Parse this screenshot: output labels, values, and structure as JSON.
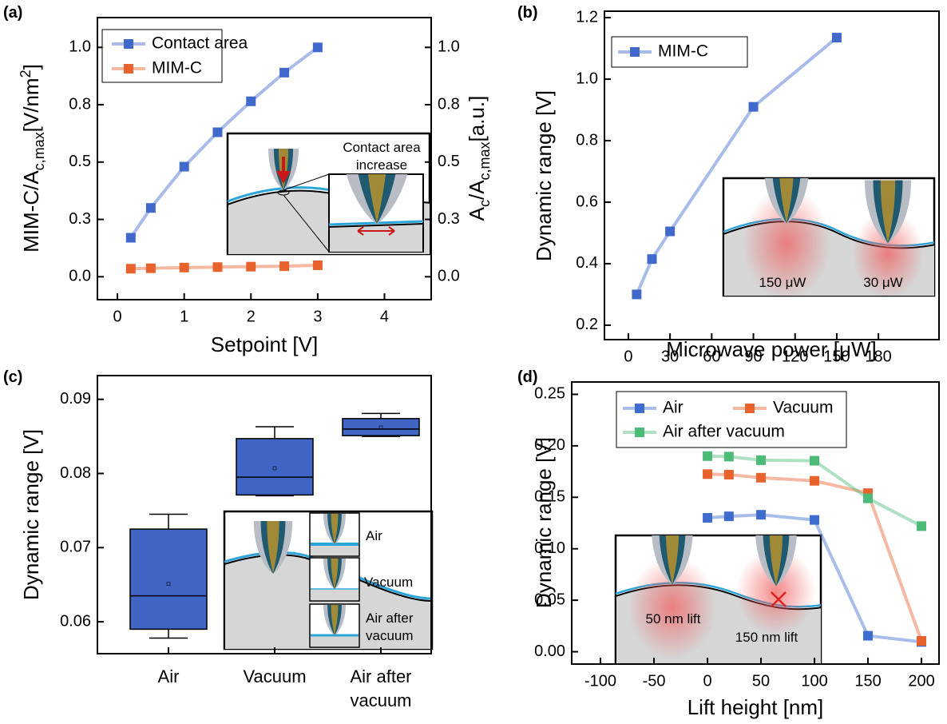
{
  "chart_data": [
    {
      "label": "(a)",
      "type": "line",
      "x_label": "Setpoint [V]",
      "y_label": [
        "MIM-C/A",
        "c,max",
        "[V/nm",
        "2",
        "]"
      ],
      "y2_label": [
        "A",
        "c",
        "/A",
        "c,max",
        "[a.u.]"
      ],
      "x": [
        0.2,
        0.5,
        1,
        1.5,
        2,
        2.5,
        3
      ],
      "series": [
        {
          "name": "Contact area",
          "color": "#4169cc",
          "axis": "y2",
          "values": [
            0.17,
            0.3,
            0.48,
            0.63,
            0.765,
            0.89,
            1.0
          ]
        },
        {
          "name": "MIM-C",
          "color": "#e8622e",
          "values": [
            0.035,
            0.037,
            0.04,
            0.042,
            0.044,
            0.046,
            0.05
          ]
        }
      ],
      "xlim": [
        -0.3,
        4.7
      ],
      "xticks": [
        0,
        1,
        2,
        3,
        4
      ],
      "ylim": [
        -0.1,
        1.13
      ],
      "yticks": [
        {
          "value": 0,
          "label": "0.0"
        },
        {
          "value": 0.25,
          "label": "0.3"
        },
        0.5,
        {
          "value": 0.75,
          "label": "0.8"
        },
        {
          "value": 1,
          "label": "1.0"
        }
      ],
      "y2lim": [
        -0.1,
        1.13
      ],
      "y2ticks": [
        {
          "value": 0,
          "label": "0.0"
        },
        {
          "value": 0.25,
          "label": "0.3"
        },
        0.5,
        {
          "value": 0.75,
          "label": "0.8"
        },
        {
          "value": 1,
          "label": "1.0"
        }
      ],
      "legend": "upper left",
      "annotations": [
        "Contact area",
        "increase"
      ]
    },
    {
      "label": "(b)",
      "type": "line",
      "x_label": "Microwave power [μW]",
      "y_label": "Dynamic range [V]",
      "x": [
        6,
        17,
        30,
        90,
        150
      ],
      "series": [
        {
          "name": "MIM-C",
          "color": "#4169cc",
          "values": [
            0.3,
            0.415,
            0.505,
            0.91,
            1.135
          ]
        }
      ],
      "xlim": [
        -17.2,
        223.6
      ],
      "xticks": [
        0,
        30,
        60,
        90,
        120,
        150,
        180
      ],
      "ylim": [
        0.153,
        1.221
      ],
      "yticks": [
        0.2,
        0.4,
        0.6,
        0.8,
        {
          "value": 1,
          "label": "1.0"
        },
        1.2
      ],
      "legend": "upper left",
      "annotations": [
        "150 μW",
        "30 μW"
      ]
    },
    {
      "label": "(c)",
      "type": "box",
      "y_label": "Dynamic range [V]",
      "categories": [
        "Air",
        "Vacuum",
        [
          "Air after",
          "vacuum"
        ]
      ],
      "color": "#4065c4",
      "boxes": [
        {
          "whisker_low": 0.0578,
          "q1": 0.059,
          "median": 0.0635,
          "q3": 0.0725,
          "whisker_high": 0.0745,
          "mean": 0.0651
        },
        {
          "whisker_low": 0.077,
          "q1": 0.0771,
          "median": 0.0795,
          "q3": 0.0847,
          "whisker_high": 0.0863,
          "mean": 0.0807
        },
        {
          "whisker_low": 0.085,
          "q1": 0.0851,
          "median": 0.086,
          "q3": 0.0874,
          "whisker_high": 0.0881,
          "mean": 0.0862
        }
      ],
      "ylim": [
        0.0557,
        0.0932
      ],
      "yticks": [
        0.06,
        0.07,
        0.08,
        0.09
      ],
      "annotations": [
        "Air",
        "Vacuum",
        [
          "Air after",
          "vacuum"
        ]
      ]
    },
    {
      "label": "(d)",
      "type": "line",
      "x_label": "Lift height [nm]",
      "y_label": "Dynamic range [V]",
      "x": [
        0,
        20,
        50,
        100,
        150,
        200
      ],
      "series": [
        {
          "name": "Air",
          "color": "#3f6ccf",
          "values": [
            0.13,
            0.1315,
            0.133,
            0.128,
            0.0155,
            0.0095
          ]
        },
        {
          "name": "Vacuum",
          "color": "#e8622e",
          "values": [
            0.1725,
            0.172,
            0.169,
            0.166,
            0.154,
            0.0105
          ]
        },
        {
          "name": "Air after vacuum",
          "color": "#4cbb78",
          "values": [
            0.19,
            0.1895,
            0.186,
            0.1855,
            0.149,
            0.122
          ]
        }
      ],
      "xlim": [
        -126.9,
        216.4
      ],
      "xticks": [
        -100,
        -50,
        0,
        50,
        100,
        150,
        200
      ],
      "ylim": [
        -0.012,
        0.262
      ],
      "yticks": [
        {
          "value": 0,
          "label": "0.00"
        },
        0.05,
        {
          "value": 0.1,
          "label": "0.10"
        },
        0.15,
        {
          "value": 0.2,
          "label": "0.20"
        },
        0.25
      ],
      "legend": "upper left",
      "annotations": [
        "50 nm lift",
        "150 nm lift"
      ]
    }
  ]
}
